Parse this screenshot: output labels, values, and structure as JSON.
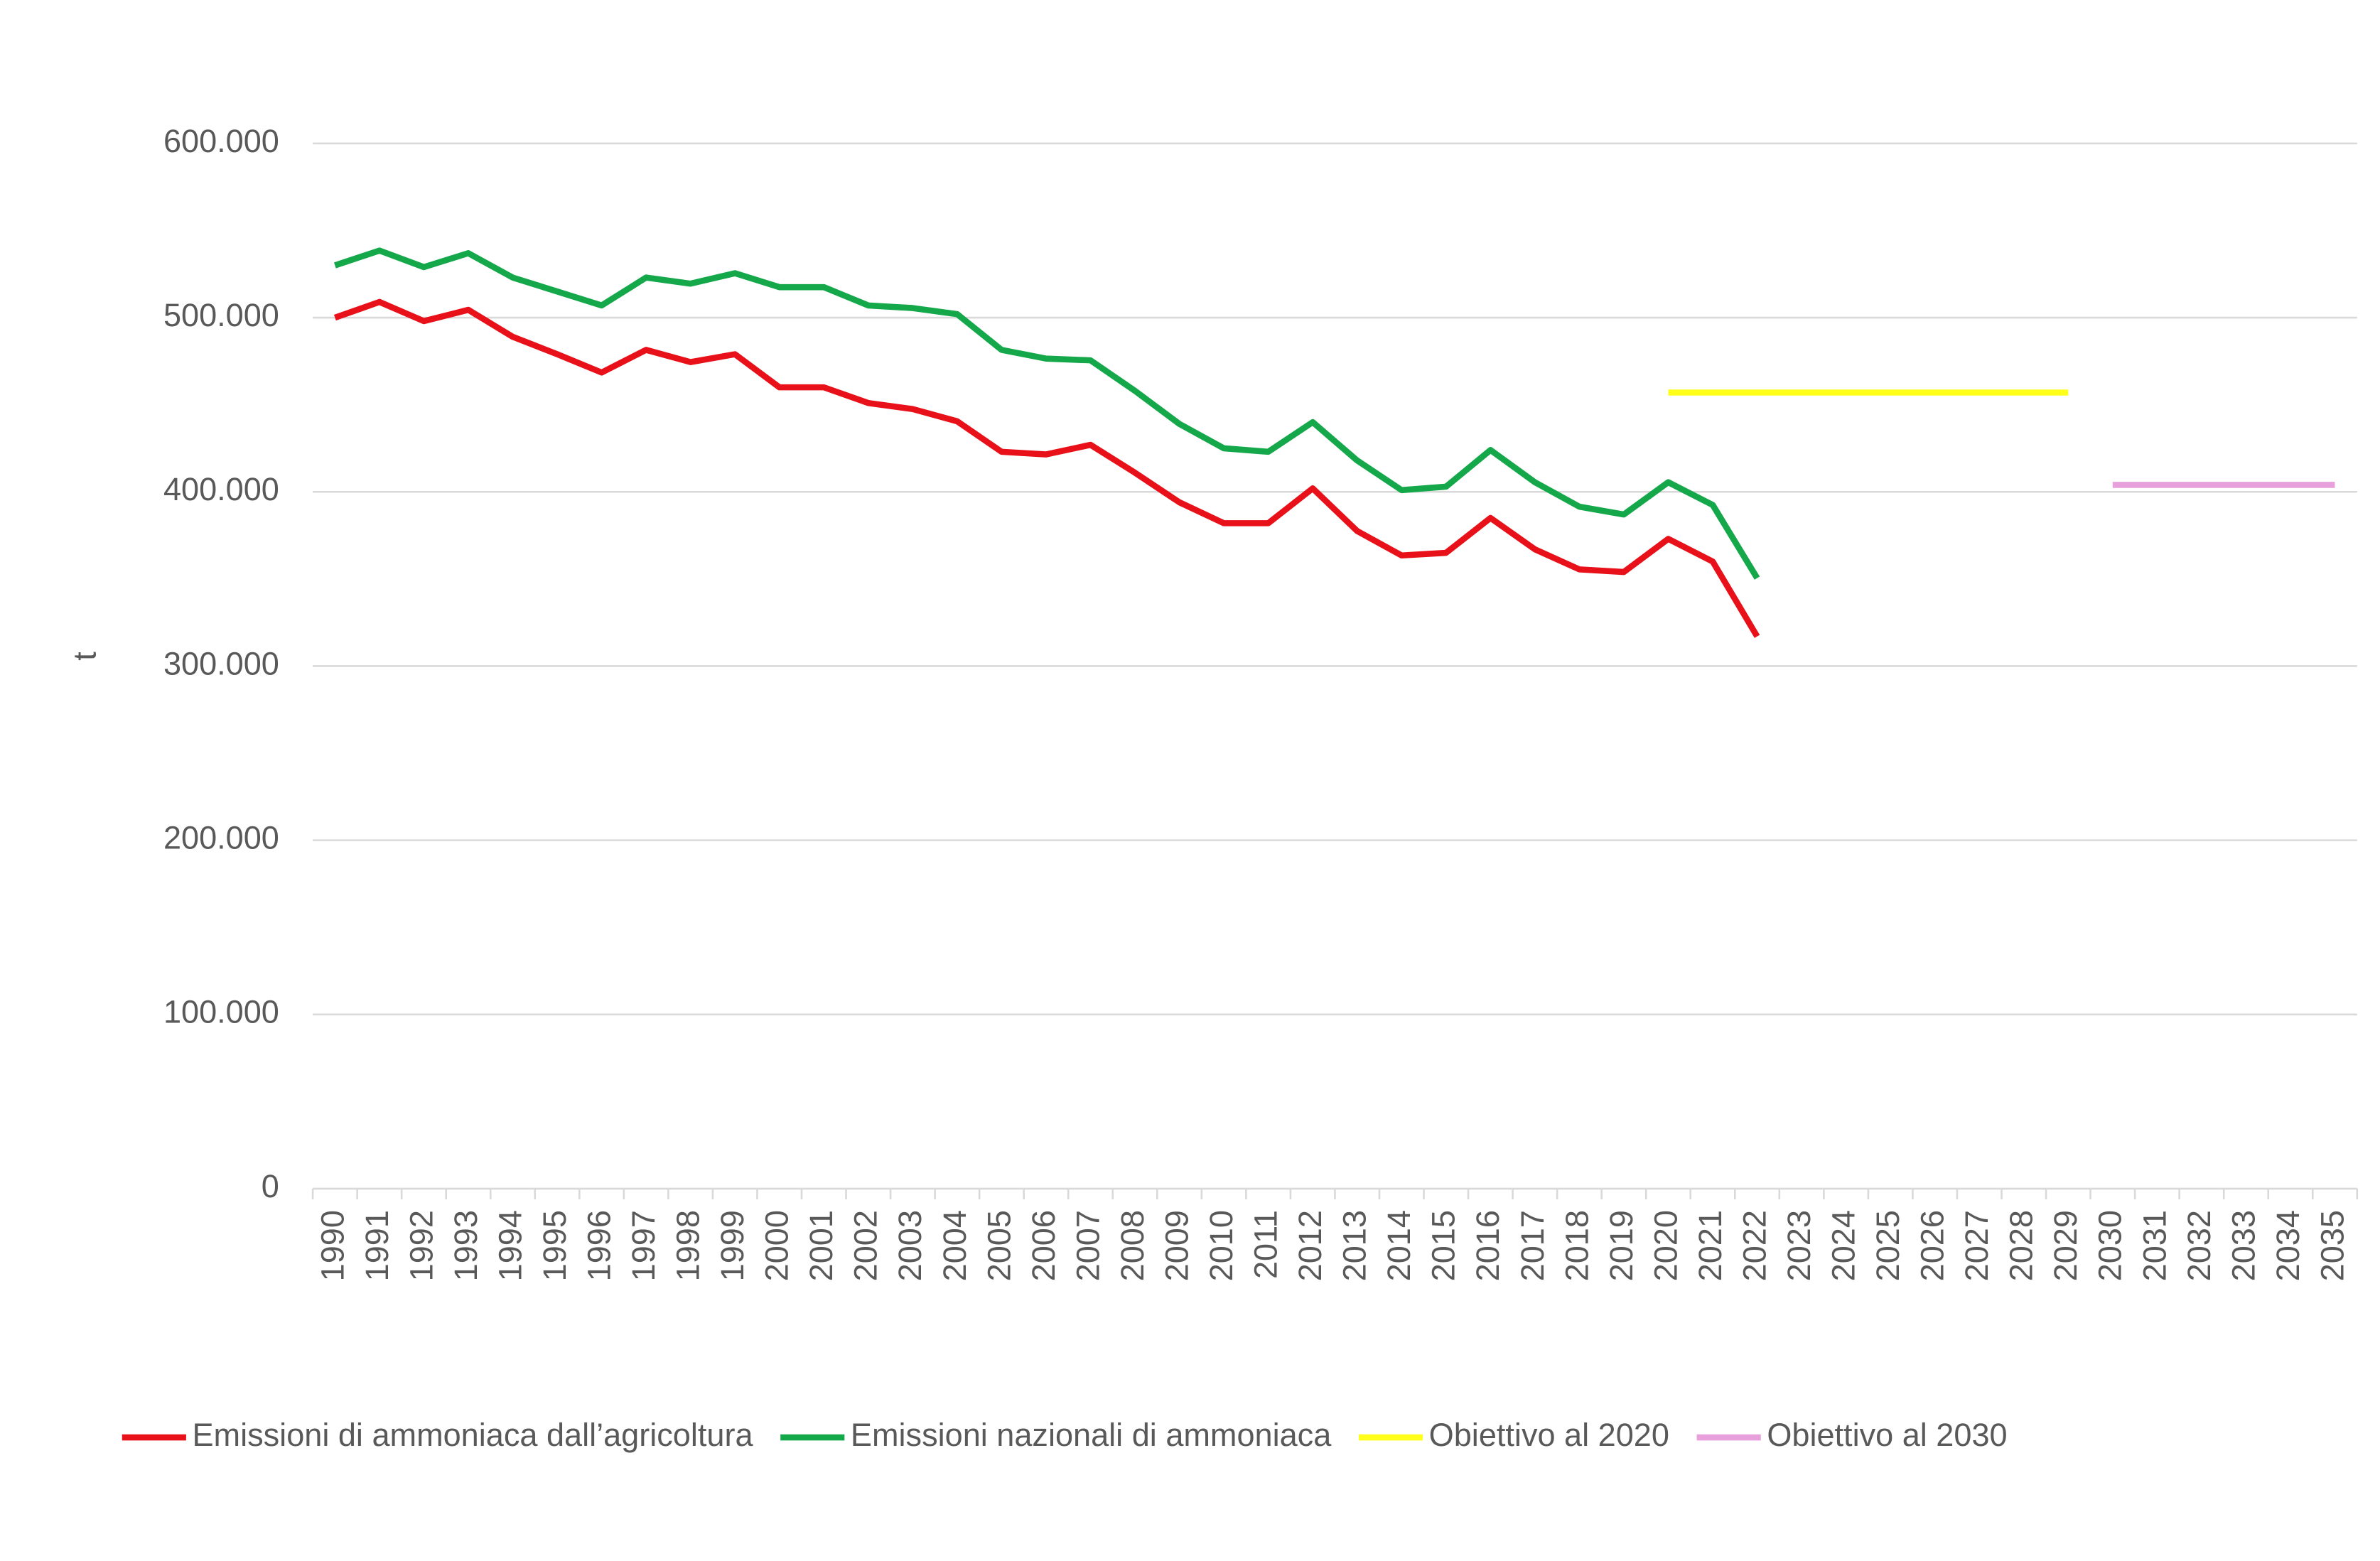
{
  "chart_data": {
    "type": "line",
    "y_axis_label": "t",
    "categories": [
      "1990",
      "1991",
      "1992",
      "1993",
      "1994",
      "1995",
      "1996",
      "1997",
      "1998",
      "1999",
      "2000",
      "2001",
      "2002",
      "2003",
      "2004",
      "2005",
      "2006",
      "2007",
      "2008",
      "2009",
      "2010",
      "2011",
      "2012",
      "2013",
      "2014",
      "2015",
      "2016",
      "2017",
      "2018",
      "2019",
      "2020",
      "2021",
      "2022",
      "2023",
      "2024",
      "2025",
      "2026",
      "2027",
      "2028",
      "2029",
      "2030",
      "2031",
      "2032",
      "2033",
      "2034",
      "2035"
    ],
    "series": [
      {
        "name": "Emissioni di ammoniaca dall’agricoltura",
        "color": "#e8111a",
        "values": [
          500000,
          509000,
          498000,
          504500,
          489000,
          479000,
          468500,
          481500,
          474500,
          479000,
          460000,
          460000,
          451000,
          447500,
          440500,
          423000,
          421500,
          427000,
          411000,
          394000,
          382000,
          382000,
          402000,
          377500,
          363500,
          365000,
          385000,
          367000,
          355500,
          354000,
          373000,
          360000,
          317000,
          null,
          null,
          null,
          null,
          null,
          null,
          null,
          null,
          null,
          null,
          null,
          null,
          null
        ]
      },
      {
        "name": "Emissioni nazionali di ammoniaca",
        "color": "#14a84a",
        "values": [
          530000,
          538500,
          529000,
          537000,
          523000,
          515000,
          507000,
          523000,
          519500,
          525500,
          517500,
          517500,
          507000,
          505500,
          502000,
          481500,
          476500,
          475500,
          458000,
          439000,
          425000,
          423000,
          440000,
          418000,
          401000,
          403000,
          424000,
          405500,
          391500,
          387000,
          405500,
          392500,
          350500,
          null,
          null,
          null,
          null,
          null,
          null,
          null,
          null,
          null,
          null,
          null,
          null,
          null
        ]
      },
      {
        "name": "Obiettivo al 2020",
        "color": "#ffff1a",
        "values": [
          null,
          null,
          null,
          null,
          null,
          null,
          null,
          null,
          null,
          null,
          null,
          null,
          null,
          null,
          null,
          null,
          null,
          null,
          null,
          null,
          null,
          null,
          null,
          null,
          null,
          null,
          null,
          null,
          null,
          null,
          457000,
          457000,
          457000,
          457000,
          457000,
          457000,
          457000,
          457000,
          457000,
          457000,
          null,
          null,
          null,
          null,
          null,
          null
        ]
      },
      {
        "name": "Obiettivo al 2030",
        "color": "#e7a0dc",
        "values": [
          null,
          null,
          null,
          null,
          null,
          null,
          null,
          null,
          null,
          null,
          null,
          null,
          null,
          null,
          null,
          null,
          null,
          null,
          null,
          null,
          null,
          null,
          null,
          null,
          null,
          null,
          null,
          null,
          null,
          null,
          null,
          null,
          null,
          null,
          null,
          null,
          null,
          null,
          null,
          null,
          404000,
          404000,
          404000,
          404000,
          404000,
          404000
        ]
      }
    ],
    "ylim": [
      0,
      600000
    ],
    "yticks": [
      0,
      {
        "value": 100000,
        "label": "100.000"
      },
      {
        "value": 200000,
        "label": "200.000"
      },
      {
        "value": 300000,
        "label": "300.000"
      },
      {
        "value": 400000,
        "label": "400.000"
      },
      {
        "value": 500000,
        "label": "500.000"
      },
      {
        "value": 600000,
        "label": "600.000"
      }
    ],
    "grid": true,
    "legend": "bottom"
  }
}
